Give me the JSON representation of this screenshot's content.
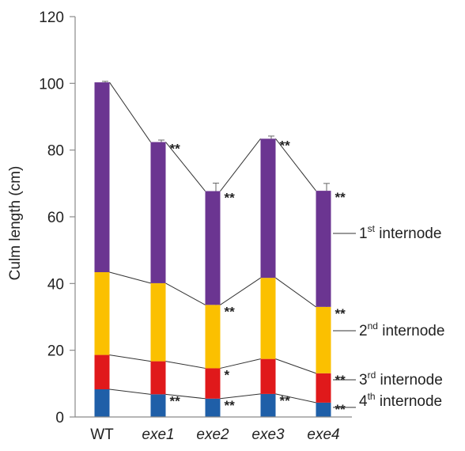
{
  "chart_data": {
    "type": "bar",
    "stacked": true,
    "title": "",
    "xlabel": "",
    "ylabel": "Culm length (cm)",
    "ylim": [
      0,
      120
    ],
    "yticks": [
      0,
      20,
      40,
      60,
      80,
      100,
      120
    ],
    "grid": false,
    "categories": [
      "WT",
      "exe1",
      "exe2",
      "exe3",
      "exe4"
    ],
    "categories_italic": [
      false,
      true,
      true,
      true,
      true
    ],
    "series": [
      {
        "name": "4th internode",
        "base": "4",
        "suffix": "th",
        "rest": " internode",
        "color": "#1f5fa8",
        "values": [
          8.3,
          6.8,
          5.5,
          6.9,
          4.3
        ],
        "errors": [
          0.3,
          0.3,
          0.3,
          0.3,
          0.3
        ]
      },
      {
        "name": "3rd internode",
        "base": "3",
        "suffix": "rd",
        "rest": " internode",
        "color": "#e0191b",
        "values": [
          10.3,
          9.9,
          9.1,
          10.5,
          8.8
        ],
        "errors": [
          0.4,
          0.4,
          0.4,
          0.4,
          0.4
        ]
      },
      {
        "name": "2nd internode",
        "base": "2",
        "suffix": "nd",
        "rest": " internode",
        "color": "#fbc000",
        "values": [
          24.8,
          23.4,
          19.0,
          24.3,
          19.9
        ],
        "errors": [
          0.4,
          0.4,
          0.4,
          0.4,
          0.4
        ]
      },
      {
        "name": "1st internode",
        "base": "1",
        "suffix": "st",
        "rest": " internode",
        "color": "#6b3591",
        "values": [
          56.9,
          42.3,
          34.1,
          41.7,
          34.8
        ],
        "errors": [
          0.3,
          0.6,
          2.4,
          0.8,
          2.2
        ]
      }
    ],
    "significance": [
      {
        "category": "exe1",
        "level": 4,
        "text": "**"
      },
      {
        "category": "exe1",
        "level": 1,
        "text": "**"
      },
      {
        "category": "exe2",
        "level": 4,
        "text": "**"
      },
      {
        "category": "exe2",
        "level": 3,
        "text": "**"
      },
      {
        "category": "exe2",
        "level": 2,
        "text": "*"
      },
      {
        "category": "exe2",
        "level": 1,
        "text": "**"
      },
      {
        "category": "exe3",
        "level": 4,
        "text": "**"
      },
      {
        "category": "exe3",
        "level": 1,
        "text": "**"
      },
      {
        "category": "exe4",
        "level": 4,
        "text": "**"
      },
      {
        "category": "exe4",
        "level": 3,
        "text": "**"
      },
      {
        "category": "exe4",
        "level": 2,
        "text": "**"
      },
      {
        "category": "exe4",
        "level": 1,
        "text": "**"
      }
    ],
    "legend_placement": "right"
  }
}
